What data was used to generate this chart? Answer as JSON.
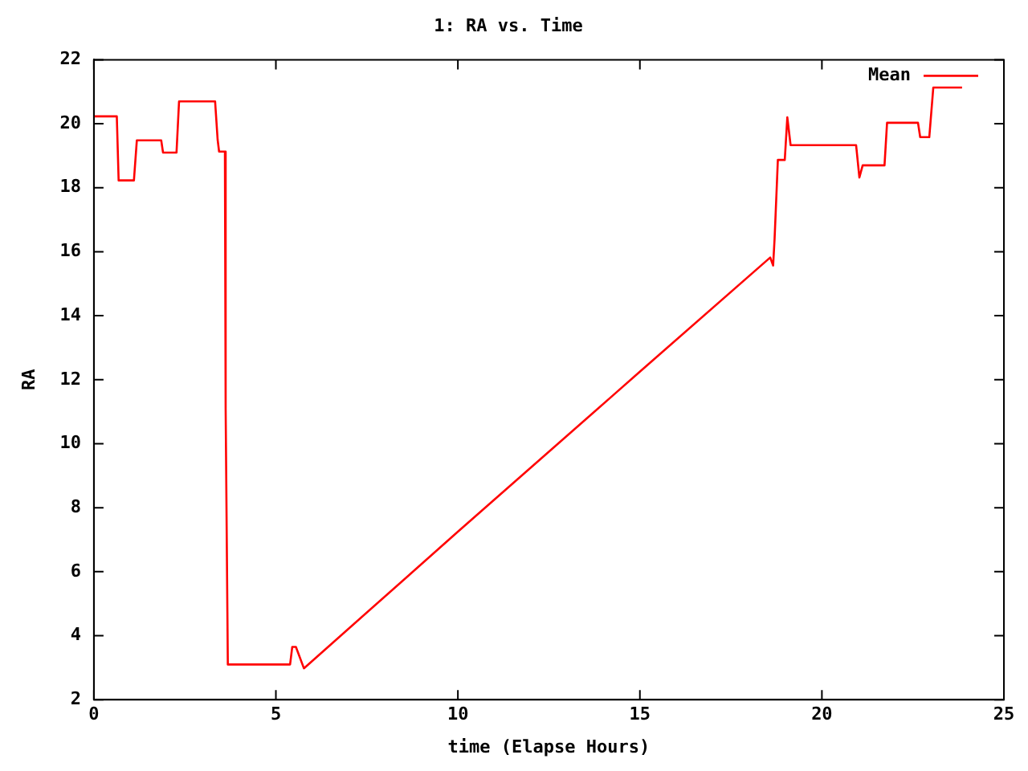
{
  "chart_data": {
    "type": "line",
    "title": "1: RA vs. Time",
    "xlabel": "time (Elapse Hours)",
    "ylabel": "RA",
    "xlim": [
      0,
      25
    ],
    "xticks": [
      0,
      5,
      10,
      15,
      20,
      25
    ],
    "ylim": [
      2,
      22
    ],
    "yticks": [
      2,
      4,
      6,
      8,
      10,
      12,
      14,
      16,
      18,
      20,
      22
    ],
    "grid": false,
    "legend": "top right",
    "marker": "none",
    "line_style": "solid",
    "series": [
      {
        "name": "Mean",
        "color": "#ff0000",
        "x": [
          0,
          0.63,
          0.68,
          1.1,
          1.18,
          1.85,
          1.9,
          2.27,
          2.34,
          3.33,
          3.4,
          3.44,
          3.6,
          3.62,
          3.68,
          5.39,
          5.45,
          5.55,
          5.77,
          10,
          15,
          18.58,
          18.66,
          18.7,
          18.76,
          18.79,
          18.98,
          19.05,
          19.14,
          20.94,
          21.03,
          21.12,
          21.72,
          21.79,
          22.64,
          22.7,
          22.95,
          23.06,
          23.85
        ],
        "values": [
          20.23,
          20.23,
          18.23,
          18.23,
          19.48,
          19.48,
          19.1,
          19.1,
          20.7,
          20.7,
          19.5,
          19.13,
          19.13,
          11.1,
          3.1,
          3.1,
          3.65,
          3.65,
          2.98,
          7.25,
          12.25,
          15.82,
          15.57,
          16.4,
          18.03,
          18.87,
          18.87,
          20.2,
          19.33,
          19.33,
          18.32,
          18.7,
          18.7,
          20.03,
          20.03,
          19.58,
          19.58,
          21.13,
          21.13
        ]
      }
    ]
  }
}
